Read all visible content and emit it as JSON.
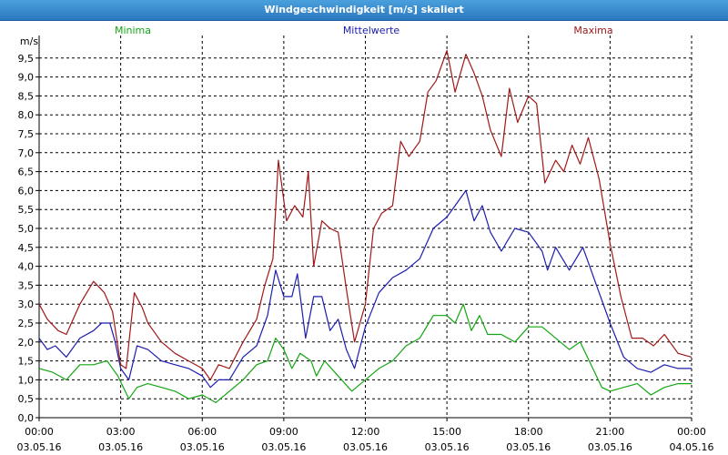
{
  "window": {
    "title": "Windgeschwindigkeit [m/s] skaliert"
  },
  "colors": {
    "minima": "#12a512",
    "mittel": "#1c1cb0",
    "maxima": "#a01818",
    "grid": "#000000"
  },
  "chart_data": {
    "type": "line",
    "title": "Windgeschwindigkeit [m/s] skaliert",
    "ylabel": "m/s",
    "ylim": [
      0,
      10
    ],
    "xlim": [
      "03.05.16 00:00",
      "04.05.16 00:00"
    ],
    "grid": true,
    "legend_placement": "top",
    "y_ticks": [
      "0,0",
      "0,5",
      "1,0",
      "1,5",
      "2,0",
      "2,5",
      "3,0",
      "3,5",
      "4,0",
      "4,5",
      "5,0",
      "5,5",
      "6,0",
      "6,5",
      "7,0",
      "7,5",
      "8,0",
      "8,5",
      "9,0",
      "9,5"
    ],
    "x_ticks": [
      {
        "time": "00:00",
        "date": "03.05.16"
      },
      {
        "time": "03:00",
        "date": "03.05.16"
      },
      {
        "time": "06:00",
        "date": "03.05.16"
      },
      {
        "time": "09:00",
        "date": "03.05.16"
      },
      {
        "time": "12:00",
        "date": "03.05.16"
      },
      {
        "time": "15:00",
        "date": "03.05.16"
      },
      {
        "time": "18:00",
        "date": "03.05.16"
      },
      {
        "time": "21:00",
        "date": "03.05.16"
      },
      {
        "time": "00:00",
        "date": "04.05.16"
      }
    ],
    "series": [
      {
        "name": "Minima",
        "color": "#12a512",
        "points": [
          [
            0,
            1.3
          ],
          [
            0.5,
            1.2
          ],
          [
            1,
            1.0
          ],
          [
            1.5,
            1.4
          ],
          [
            2,
            1.4
          ],
          [
            2.5,
            1.5
          ],
          [
            2.9,
            1.1
          ],
          [
            3.3,
            0.5
          ],
          [
            3.6,
            0.8
          ],
          [
            4,
            0.9
          ],
          [
            4.5,
            0.8
          ],
          [
            5,
            0.7
          ],
          [
            5.5,
            0.5
          ],
          [
            6,
            0.6
          ],
          [
            6.5,
            0.4
          ],
          [
            7,
            0.7
          ],
          [
            7.5,
            1.0
          ],
          [
            8,
            1.4
          ],
          [
            8.4,
            1.5
          ],
          [
            8.7,
            2.1
          ],
          [
            9.0,
            1.8
          ],
          [
            9.3,
            1.3
          ],
          [
            9.6,
            1.7
          ],
          [
            10,
            1.5
          ],
          [
            10.2,
            1.1
          ],
          [
            10.5,
            1.5
          ],
          [
            11,
            1.1
          ],
          [
            11.5,
            0.7
          ],
          [
            12,
            1.0
          ],
          [
            12.5,
            1.3
          ],
          [
            13,
            1.5
          ],
          [
            13.5,
            1.9
          ],
          [
            14,
            2.1
          ],
          [
            14.5,
            2.7
          ],
          [
            15,
            2.7
          ],
          [
            15.3,
            2.5
          ],
          [
            15.6,
            3.0
          ],
          [
            15.9,
            2.3
          ],
          [
            16.2,
            2.7
          ],
          [
            16.5,
            2.2
          ],
          [
            17,
            2.2
          ],
          [
            17.5,
            2.0
          ],
          [
            18,
            2.4
          ],
          [
            18.5,
            2.4
          ],
          [
            19,
            2.1
          ],
          [
            19.5,
            1.8
          ],
          [
            19.9,
            2.0
          ],
          [
            20.3,
            1.4
          ],
          [
            20.7,
            0.8
          ],
          [
            21,
            0.7
          ],
          [
            21.5,
            0.8
          ],
          [
            22,
            0.9
          ],
          [
            22.5,
            0.6
          ],
          [
            23,
            0.8
          ],
          [
            23.5,
            0.9
          ],
          [
            24,
            0.9
          ]
        ]
      },
      {
        "name": "Mittelwerte",
        "color": "#1c1cb0",
        "points": [
          [
            0,
            2.1
          ],
          [
            0.3,
            1.8
          ],
          [
            0.6,
            1.9
          ],
          [
            1,
            1.6
          ],
          [
            1.5,
            2.1
          ],
          [
            2,
            2.3
          ],
          [
            2.3,
            2.5
          ],
          [
            2.6,
            2.5
          ],
          [
            2.8,
            2.0
          ],
          [
            3.0,
            1.3
          ],
          [
            3.3,
            1.0
          ],
          [
            3.6,
            1.9
          ],
          [
            4,
            1.8
          ],
          [
            4.5,
            1.5
          ],
          [
            5,
            1.4
          ],
          [
            5.5,
            1.3
          ],
          [
            6,
            1.1
          ],
          [
            6.3,
            0.8
          ],
          [
            6.6,
            1.0
          ],
          [
            7,
            1.0
          ],
          [
            7.5,
            1.6
          ],
          [
            8,
            1.9
          ],
          [
            8.4,
            2.7
          ],
          [
            8.7,
            3.9
          ],
          [
            9.0,
            3.2
          ],
          [
            9.3,
            3.2
          ],
          [
            9.5,
            3.8
          ],
          [
            9.8,
            2.1
          ],
          [
            10.1,
            3.2
          ],
          [
            10.4,
            3.2
          ],
          [
            10.7,
            2.3
          ],
          [
            11,
            2.6
          ],
          [
            11.3,
            1.8
          ],
          [
            11.6,
            1.3
          ],
          [
            12,
            2.4
          ],
          [
            12.5,
            3.3
          ],
          [
            13,
            3.7
          ],
          [
            13.5,
            3.9
          ],
          [
            14,
            4.2
          ],
          [
            14.5,
            5.0
          ],
          [
            15,
            5.3
          ],
          [
            15.3,
            5.6
          ],
          [
            15.7,
            6.0
          ],
          [
            16,
            5.2
          ],
          [
            16.3,
            5.6
          ],
          [
            16.6,
            4.9
          ],
          [
            17,
            4.4
          ],
          [
            17.5,
            5.0
          ],
          [
            18,
            4.9
          ],
          [
            18.5,
            4.4
          ],
          [
            18.7,
            3.9
          ],
          [
            19,
            4.5
          ],
          [
            19.5,
            3.9
          ],
          [
            20,
            4.5
          ],
          [
            20.3,
            3.9
          ],
          [
            20.6,
            3.3
          ],
          [
            21,
            2.5
          ],
          [
            21.5,
            1.6
          ],
          [
            22,
            1.3
          ],
          [
            22.5,
            1.2
          ],
          [
            23,
            1.4
          ],
          [
            23.5,
            1.3
          ],
          [
            24,
            1.3
          ]
        ]
      },
      {
        "name": "Maxima",
        "color": "#a01818",
        "points": [
          [
            0,
            3.0
          ],
          [
            0.3,
            2.6
          ],
          [
            0.7,
            2.3
          ],
          [
            1,
            2.2
          ],
          [
            1.5,
            3.0
          ],
          [
            2,
            3.6
          ],
          [
            2.4,
            3.3
          ],
          [
            2.7,
            2.8
          ],
          [
            3.0,
            1.4
          ],
          [
            3.2,
            1.3
          ],
          [
            3.5,
            3.3
          ],
          [
            3.8,
            2.9
          ],
          [
            4,
            2.5
          ],
          [
            4.5,
            2.0
          ],
          [
            5,
            1.7
          ],
          [
            5.5,
            1.5
          ],
          [
            6,
            1.3
          ],
          [
            6.3,
            1.0
          ],
          [
            6.6,
            1.4
          ],
          [
            7,
            1.3
          ],
          [
            7.5,
            2.0
          ],
          [
            8,
            2.6
          ],
          [
            8.3,
            3.5
          ],
          [
            8.6,
            4.2
          ],
          [
            8.8,
            6.8
          ],
          [
            9.1,
            5.2
          ],
          [
            9.4,
            5.6
          ],
          [
            9.7,
            5.3
          ],
          [
            9.9,
            6.5
          ],
          [
            10.1,
            4.0
          ],
          [
            10.4,
            5.2
          ],
          [
            10.7,
            5.0
          ],
          [
            11,
            4.9
          ],
          [
            11.3,
            3.4
          ],
          [
            11.6,
            2.0
          ],
          [
            12,
            3.0
          ],
          [
            12.3,
            5.0
          ],
          [
            12.6,
            5.4
          ],
          [
            13,
            5.6
          ],
          [
            13.3,
            7.3
          ],
          [
            13.6,
            6.9
          ],
          [
            14,
            7.3
          ],
          [
            14.3,
            8.6
          ],
          [
            14.6,
            8.9
          ],
          [
            15,
            9.7
          ],
          [
            15.3,
            8.6
          ],
          [
            15.7,
            9.6
          ],
          [
            16,
            9.1
          ],
          [
            16.3,
            8.5
          ],
          [
            16.6,
            7.6
          ],
          [
            17,
            6.9
          ],
          [
            17.3,
            8.7
          ],
          [
            17.6,
            7.8
          ],
          [
            18,
            8.5
          ],
          [
            18.3,
            8.3
          ],
          [
            18.6,
            6.2
          ],
          [
            19,
            6.8
          ],
          [
            19.3,
            6.5
          ],
          [
            19.6,
            7.2
          ],
          [
            19.9,
            6.7
          ],
          [
            20.2,
            7.4
          ],
          [
            20.6,
            6.3
          ],
          [
            21,
            4.6
          ],
          [
            21.4,
            3.2
          ],
          [
            21.8,
            2.1
          ],
          [
            22.2,
            2.1
          ],
          [
            22.6,
            1.9
          ],
          [
            23,
            2.2
          ],
          [
            23.5,
            1.7
          ],
          [
            24,
            1.6
          ]
        ]
      }
    ]
  }
}
